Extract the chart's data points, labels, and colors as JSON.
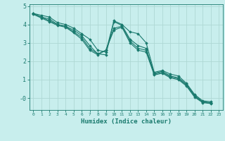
{
  "title": "",
  "xlabel": "Humidex (Indice chaleur)",
  "ylabel": "",
  "bg_color": "#c8eeed",
  "grid_color": "#aed8d4",
  "line_color": "#1a7a6e",
  "xlim": [
    -0.5,
    23.5
  ],
  "ylim": [
    -0.65,
    5.1
  ],
  "yticks": [
    0,
    1,
    2,
    3,
    4,
    5
  ],
  "ytick_labels": [
    "-0",
    "1",
    "2",
    "3",
    "4",
    "5"
  ],
  "xticks": [
    0,
    1,
    2,
    3,
    4,
    5,
    6,
    7,
    8,
    9,
    10,
    11,
    12,
    13,
    14,
    15,
    16,
    17,
    18,
    19,
    20,
    21,
    22,
    23
  ],
  "lines": [
    {
      "x": [
        0,
        1,
        2,
        3,
        4,
        5,
        6,
        7,
        8,
        9,
        10,
        11,
        12,
        13,
        14,
        15,
        16,
        17,
        18,
        19,
        20,
        21,
        22
      ],
      "y": [
        4.6,
        4.5,
        4.4,
        4.1,
        4.0,
        3.8,
        3.5,
        3.2,
        2.6,
        2.5,
        4.2,
        4.0,
        3.6,
        3.5,
        3.0,
        1.4,
        1.5,
        1.3,
        1.2,
        0.8,
        0.2,
        -0.15,
        -0.2
      ]
    },
    {
      "x": [
        0,
        1,
        2,
        3,
        4,
        5,
        6,
        7,
        8,
        9,
        10,
        11,
        12,
        13,
        14,
        15,
        16,
        17,
        18,
        19,
        20,
        21,
        22
      ],
      "y": [
        4.6,
        4.4,
        4.3,
        4.0,
        3.9,
        3.7,
        3.4,
        2.85,
        2.4,
        2.35,
        4.15,
        3.95,
        3.2,
        2.85,
        2.7,
        1.35,
        1.45,
        1.2,
        1.1,
        0.75,
        0.15,
        -0.2,
        -0.25
      ]
    },
    {
      "x": [
        0,
        1,
        2,
        3,
        4,
        5,
        6,
        7,
        8,
        9,
        10,
        11,
        12,
        13,
        14,
        15,
        16,
        17,
        18,
        19,
        20,
        21,
        22
      ],
      "y": [
        4.6,
        4.4,
        4.2,
        4.0,
        3.9,
        3.6,
        3.3,
        2.7,
        2.4,
        2.6,
        3.8,
        3.9,
        3.1,
        2.7,
        2.6,
        1.3,
        1.4,
        1.15,
        1.05,
        0.7,
        0.1,
        -0.22,
        -0.28
      ]
    },
    {
      "x": [
        0,
        1,
        2,
        3,
        4,
        5,
        6,
        7,
        8,
        9,
        10,
        11,
        12,
        13,
        14,
        15,
        16,
        17,
        18,
        19,
        20,
        21,
        22
      ],
      "y": [
        4.55,
        4.35,
        4.15,
        3.95,
        3.85,
        3.55,
        3.2,
        2.6,
        2.35,
        2.6,
        3.7,
        3.85,
        3.0,
        2.6,
        2.5,
        1.25,
        1.35,
        1.1,
        1.0,
        0.65,
        0.05,
        -0.25,
        -0.3
      ]
    }
  ]
}
